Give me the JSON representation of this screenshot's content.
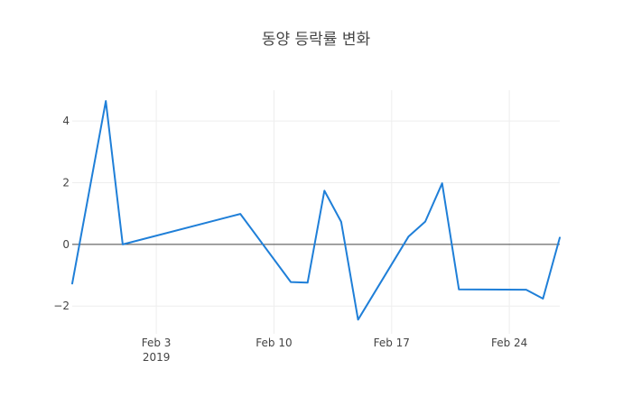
{
  "chart_data": {
    "type": "line",
    "title": "동양 등락률 변화",
    "xlabel": "",
    "ylabel": "",
    "x_type": "date",
    "xlim": [
      "2019-01-29",
      "2019-02-27"
    ],
    "ylim": [
      -2.9,
      5.0
    ],
    "x_ticks": [
      {
        "date": "2019-02-03",
        "label": "Feb 3",
        "sublabel": "2019"
      },
      {
        "date": "2019-02-10",
        "label": "Feb 10",
        "sublabel": ""
      },
      {
        "date": "2019-02-17",
        "label": "Feb 17",
        "sublabel": ""
      },
      {
        "date": "2019-02-24",
        "label": "Feb 24",
        "sublabel": ""
      }
    ],
    "y_ticks": [
      {
        "value": -2,
        "label": "−2"
      },
      {
        "value": 0,
        "label": "0"
      },
      {
        "value": 2,
        "label": "2"
      },
      {
        "value": 4,
        "label": "4"
      }
    ],
    "grid": true,
    "zero_line": true,
    "series": [
      {
        "color": "#1f7fd8",
        "x": [
          "2019-01-29",
          "2019-01-31",
          "2019-02-01",
          "2019-02-08",
          "2019-02-11",
          "2019-02-12",
          "2019-02-13",
          "2019-02-14",
          "2019-02-15",
          "2019-02-18",
          "2019-02-19",
          "2019-02-20",
          "2019-02-21",
          "2019-02-25",
          "2019-02-26",
          "2019-02-27"
        ],
        "y": [
          -1.27,
          4.65,
          0.0,
          0.99,
          -1.22,
          -1.24,
          1.74,
          0.73,
          -2.44,
          0.25,
          0.74,
          1.98,
          -1.46,
          -1.47,
          -1.76,
          0.22
        ]
      }
    ]
  }
}
